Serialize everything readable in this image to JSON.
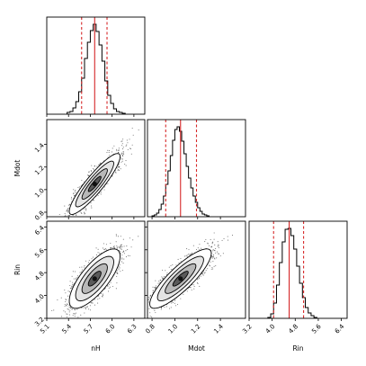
{
  "chart_data": {
    "type": "corner",
    "parameters": [
      "nH",
      "Mdot",
      "Rin"
    ],
    "axis_labels": {
      "x": [
        "nH",
        "Mdot",
        "Rin"
      ],
      "y": [
        "Mdot",
        "Rin"
      ]
    },
    "ranges": {
      "nH": [
        5.1,
        6.45
      ],
      "Mdot": [
        0.76,
        1.62
      ],
      "Rin": [
        3.2,
        6.6
      ]
    },
    "ticks": {
      "nH": [
        5.1,
        5.4,
        5.7,
        6.0,
        6.3
      ],
      "Mdot": [
        0.8,
        1.0,
        1.2,
        1.4
      ],
      "Rin": [
        3.2,
        4.0,
        4.8,
        5.6,
        6.4
      ]
    },
    "tick_labels": {
      "nH": [
        "5.1",
        "5.4",
        "5.7",
        "6.0",
        "6.3"
      ],
      "Mdot": [
        "0.8",
        "1.0",
        "1.2",
        "1.4"
      ],
      "Rin": [
        "3.2",
        "4.0",
        "4.8",
        "5.6",
        "6.4"
      ]
    },
    "summary": {
      "nH": {
        "median": 5.76,
        "lower": 5.58,
        "upper": 5.93
      },
      "Mdot": {
        "median": 1.05,
        "lower": 0.92,
        "upper": 1.19
      },
      "Rin": {
        "median": 4.59,
        "lower": 4.05,
        "upper": 5.09
      }
    },
    "histograms": {
      "nH": {
        "edges": [
          5.38,
          5.42,
          5.46,
          5.5,
          5.54,
          5.58,
          5.62,
          5.66,
          5.7,
          5.74,
          5.78,
          5.82,
          5.86,
          5.9,
          5.94,
          5.98,
          6.02,
          6.06,
          6.1,
          6.14,
          6.18
        ],
        "counts": [
          0.02,
          0.03,
          0.07,
          0.14,
          0.25,
          0.4,
          0.62,
          0.8,
          0.93,
          1.0,
          0.92,
          0.77,
          0.59,
          0.37,
          0.21,
          0.12,
          0.06,
          0.03,
          0.02,
          0.01
        ]
      },
      "Mdot": {
        "edges": [
          0.8,
          0.82,
          0.84,
          0.86,
          0.88,
          0.9,
          0.92,
          0.94,
          0.96,
          0.98,
          1.0,
          1.02,
          1.04,
          1.06,
          1.08,
          1.1,
          1.12,
          1.14,
          1.16,
          1.18,
          1.2,
          1.22,
          1.24,
          1.26,
          1.28,
          1.3
        ],
        "counts": [
          0.01,
          0.02,
          0.04,
          0.08,
          0.14,
          0.23,
          0.36,
          0.51,
          0.68,
          0.85,
          0.97,
          1.0,
          0.95,
          0.84,
          0.7,
          0.56,
          0.43,
          0.32,
          0.23,
          0.16,
          0.1,
          0.06,
          0.03,
          0.02,
          0.01
        ]
      },
      "Rin": {
        "edges": [
          3.85,
          3.95,
          4.05,
          4.15,
          4.25,
          4.35,
          4.45,
          4.55,
          4.65,
          4.75,
          4.85,
          4.95,
          5.05,
          5.15,
          5.25,
          5.35,
          5.45,
          5.55
        ],
        "counts": [
          0.01,
          0.05,
          0.17,
          0.37,
          0.62,
          0.85,
          0.99,
          1.0,
          0.92,
          0.77,
          0.58,
          0.39,
          0.23,
          0.12,
          0.06,
          0.03,
          0.01
        ]
      }
    },
    "pairs": [
      {
        "x": "nH",
        "y": "Mdot",
        "row": 1,
        "col": 0,
        "rho": 0.9
      },
      {
        "x": "nH",
        "y": "Rin",
        "row": 2,
        "col": 0,
        "rho": 0.75
      },
      {
        "x": "Mdot",
        "y": "Rin",
        "row": 2,
        "col": 1,
        "rho": 0.85
      }
    ],
    "contour_sigma_levels": [
      0.5,
      1.0,
      1.5,
      2.0
    ],
    "colors": {
      "median_line": "#d62728",
      "quantile_line": "#d62728",
      "histogram": "#000000",
      "contour": "#000000",
      "points": "#000000"
    }
  }
}
